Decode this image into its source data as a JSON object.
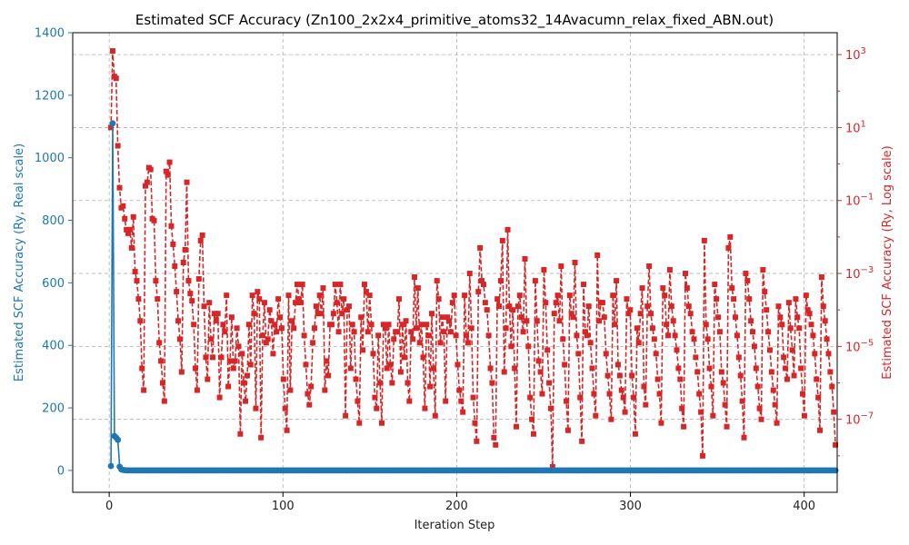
{
  "chart_data": {
    "type": "line",
    "title": "Estimated SCF Accuracy (Zn100_2x2x4_primitive_atoms32_14Avacumn_relax_fixed_ABN.out)",
    "xlabel": "Iteration Step",
    "ylabel_left": "Estimated SCF Accuracy (Ry, Real scale)",
    "ylabel_right": "Estimated SCF Accuracy (Ry, Log scale)",
    "xlim": [
      -21,
      419
    ],
    "ylim_left": [
      -70,
      1400
    ],
    "ylim_right_log": [
      -9.0,
      3.6
    ],
    "grid": true,
    "x_ticks": [
      0,
      100,
      200,
      300,
      400
    ],
    "y_left_ticks": [
      0,
      200,
      400,
      600,
      800,
      1000,
      1200,
      1400
    ],
    "y_right_ticks": [
      {
        "exp": 3,
        "label": "10^3"
      },
      {
        "exp": 1,
        "label": "10^1"
      },
      {
        "exp": -1,
        "label": "10^-1"
      },
      {
        "exp": -3,
        "label": "10^-3"
      },
      {
        "exp": -5,
        "label": "10^-5"
      },
      {
        "exp": -7,
        "label": "10^-7"
      }
    ],
    "colors": {
      "left_series": "#1f77b4",
      "right_series": "#d62728",
      "grid": "#b0b0b0"
    },
    "series": [
      {
        "axis": "left",
        "x_start": 1,
        "x_end": 418,
        "head_values": [
          14,
          1110,
          110,
          105,
          98,
          12,
          3,
          1.5,
          0.8
        ],
        "tail_value": 0
      },
      {
        "axis": "right",
        "x_start": 1,
        "x_end": 418,
        "log10_values": [
          1.0,
          3.1,
          2.4,
          2.35,
          0.5,
          -0.65,
          -1.2,
          -1.15,
          -1.5,
          -1.8,
          -1.9,
          -1.8,
          -2.3,
          -1.45,
          -2.95,
          -3.2,
          -3.7,
          -4.3,
          -5.6,
          -6.2,
          -0.6,
          -0.5,
          -0.1,
          -0.15,
          -1.5,
          -1.55,
          -3.2,
          -3.7,
          -4.9,
          -5.4,
          -6.0,
          -6.5,
          -0.2,
          -0.3,
          0.05,
          -1.7,
          -2.2,
          -2.8,
          -3.5,
          -4.3,
          -4.8,
          -5.7,
          -2.7,
          -2.35,
          -0.5,
          -3.2,
          -3.55,
          -3.75,
          -4.4,
          -5.6,
          -6.2,
          -3.15,
          -2.1,
          -1.95,
          -3.9,
          -5.3,
          -5.9,
          -3.8,
          -4.8,
          -5.3,
          -4.1,
          -4.3,
          -4.1,
          -6.4,
          -5.3,
          -4.4,
          -4.6,
          -3.6,
          -6.1,
          -5.4,
          -4.2,
          -5.6,
          -5.4,
          -4.5,
          -5.0,
          -7.4,
          -5.2,
          -6.0,
          -6.5,
          -5.8,
          -4.4,
          -5.5,
          -3.6,
          -4.1,
          -6.7,
          -3.5,
          -3.7,
          -7.5,
          -4.7,
          -3.8,
          -4.9,
          -4.8,
          -4.0,
          -4.3,
          -5.2,
          -4.4,
          -4.6,
          -3.7,
          -4.2,
          -4.5,
          -5.9,
          -6.7,
          -7.3,
          -3.6,
          -6.2,
          -4.3,
          -4.5,
          -3.8,
          -3.3,
          -3.7,
          -3.8,
          -3.3,
          -4.7,
          -5.5,
          -6.3,
          -6.6,
          -6.1,
          -4.9,
          -4.5,
          -3.9,
          -4.1,
          -3.6,
          -4.1,
          -3.4,
          -6.2,
          -5.4,
          -5.8,
          -4.4,
          -4.4,
          -4.1,
          -3.3,
          -3.8,
          -4.6,
          -3.3,
          -4.1,
          -3.7,
          -6.9,
          -4.0,
          -3.9,
          -5.6,
          -4.4,
          -4.6,
          -5.9,
          -6.5,
          -7.1,
          -4.2,
          -5.1,
          -3.3,
          -3.5,
          -4.6,
          -3.6,
          -4.4,
          -5.2,
          -6.4,
          -6.7,
          -4.7,
          -6.0,
          -7.1,
          -4.4,
          -4.5,
          -5.6,
          -4.4,
          -5.5,
          -6.0,
          -4.8,
          -4.6,
          -4.6,
          -3.7,
          -5.7,
          -4.4,
          -5.3,
          -4.3,
          -6.0,
          -6.5,
          -4.6,
          -4.8,
          -3.1,
          -4.5,
          -3.4,
          -4.9,
          -4.4,
          -5.3,
          -6.7,
          -4.4,
          -4.7,
          -6.1,
          -4.1,
          -5.6,
          -6.9,
          -3.2,
          -3.7,
          -4.9,
          -4.2,
          -4.6,
          -6.5,
          -4.2,
          -4.3,
          -4.6,
          -3.8,
          -3.6,
          -4.7,
          -5.5,
          -6.2,
          -6.5,
          -6.8,
          -3.6,
          -4.7,
          -4.9,
          -3.0,
          -4.5,
          -6.4,
          -7.1,
          -7.6,
          -3.5,
          -2.3,
          -3.2,
          -3.3,
          -3.8,
          -4.0,
          -4.7,
          -5.6,
          -6.0,
          -7.5,
          -7.7,
          -3.7,
          -3.9,
          -3.2,
          -2.1,
          -5.7,
          -4.5,
          -1.8,
          -3.9,
          -5.0,
          -4.0,
          -5.6,
          -7.2,
          -3.9,
          -3.6,
          -4.2,
          -4.6,
          -2.6,
          -4.3,
          -5.0,
          -6.4,
          -7.0,
          -7.4,
          -3.2,
          -4.3,
          -5.4,
          -5.7,
          -6.3,
          -2.9,
          -3.8,
          -5.1,
          -6.0,
          -6.7,
          -8.3,
          -4.1,
          -3.8,
          -3.6,
          -4.3,
          -2.8,
          -4.8,
          -5.5,
          -6.5,
          -7.3,
          -3.6,
          -4.1,
          -4.2,
          -2.7,
          -4.7,
          -5.2,
          -6.4,
          -7.6,
          -3.3,
          -4.6,
          -4.7,
          -3.9,
          -4.9,
          -5.6,
          -6.3,
          -6.9,
          -2.5,
          -4.3,
          -3.8,
          -3.8,
          -4.2,
          -5.2,
          -5.8,
          -6.3,
          -7.0,
          -3.6,
          -4.4,
          -3.2,
          -5.5,
          -5.8,
          -6.2,
          -6.4,
          -6.8,
          -3.7,
          -4.1,
          -4.0,
          -5.8,
          -6.4,
          -7.4,
          -4.5,
          -4.9,
          -4.1,
          -3.4,
          -6.1,
          -6.6,
          -3.9,
          -2.8,
          -4.1,
          -4.5,
          -4.8,
          -5.2,
          -5.9,
          -6.3,
          -7.1,
          -3.4,
          -3.6,
          -4.4,
          -4.7,
          -2.9,
          -3.9,
          -4.3,
          -4.7,
          -5.1,
          -5.6,
          -5.9,
          -6.7,
          -7.2,
          -3.0,
          -3.4,
          -3.9,
          -4.1,
          -4.6,
          -4.8,
          -5.3,
          -5.7,
          -6.3,
          -6.8,
          -8.0,
          -2.1,
          -4.4,
          -4.8,
          -5.6,
          -6.1,
          -6.9,
          -3.3,
          -3.7,
          -4.2,
          -4.6,
          -5.7,
          -6.0,
          -6.6,
          -7.2,
          -2.3,
          -2.0,
          -3.4,
          -3.7,
          -4.2,
          -4.7,
          -5.3,
          -5.8,
          -6.5,
          -7.5,
          -3.0,
          -3.2,
          -3.7,
          -4.3,
          -4.6,
          -5.0,
          -5.6,
          -6.1,
          -6.7,
          -7.0,
          -2.9,
          -3.5,
          -4.0,
          -4.6,
          -5.1,
          -5.7,
          -6.2,
          -6.6,
          -7.1,
          -3.9,
          -4.2,
          -4.4,
          -5.3,
          -5.6,
          -5.9,
          -3.8,
          -4.5,
          -5.1,
          -5.8,
          -3.7,
          -4.2,
          -4.5,
          -5.6,
          -6.3,
          -6.9,
          -3.6,
          -4.0,
          -4.1,
          -4.4,
          -4.7,
          -5.2,
          -5.9,
          -6.4,
          -7.3,
          -3.1,
          -3.9,
          -4.3,
          -4.8,
          -5.2,
          -5.7,
          -6.1,
          -6.8,
          -7.7
        ]
      }
    ]
  }
}
